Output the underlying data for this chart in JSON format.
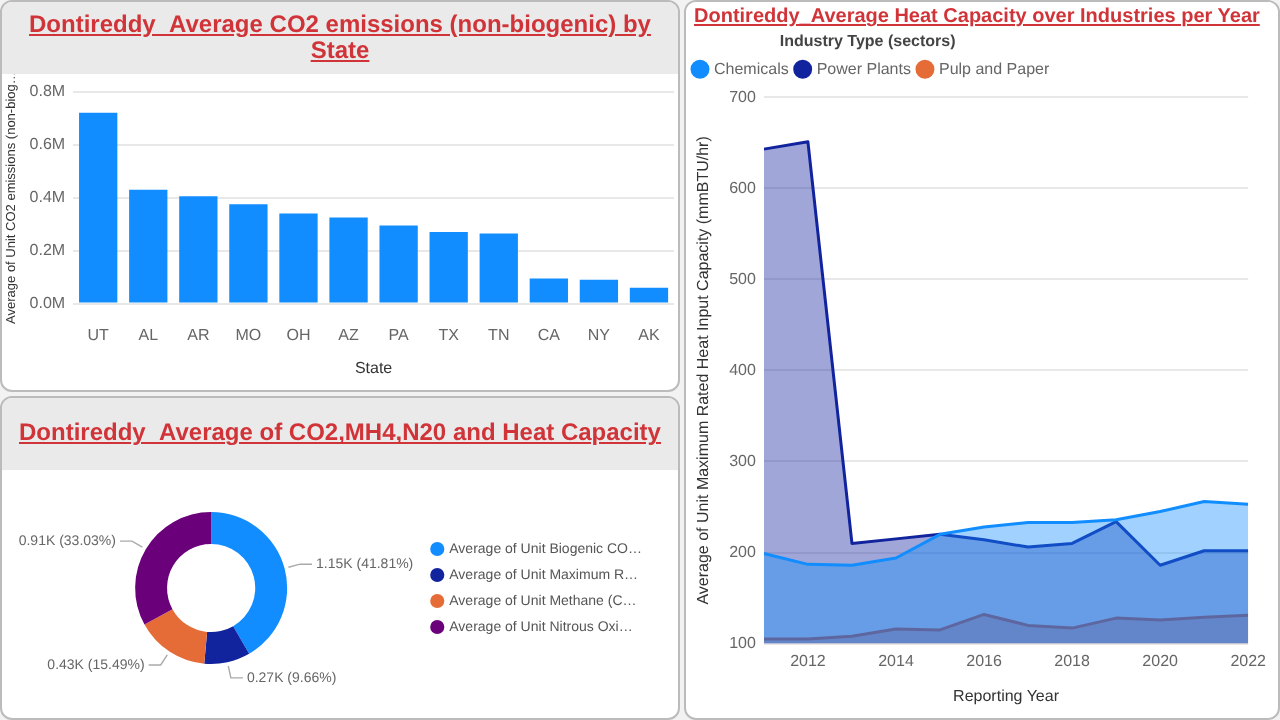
{
  "chart_data": [
    {
      "type": "bar",
      "title": "Dontireddy_Average CO2 emissions (non-biogenic) by State",
      "xlabel": "State",
      "ylabel": "Average of Unit CO2 emissions (non-biog…",
      "categories": [
        "UT",
        "AL",
        "AR",
        "MO",
        "OH",
        "AZ",
        "PA",
        "TX",
        "TN",
        "CA",
        "NY",
        "AK"
      ],
      "values": [
        720000,
        430000,
        405000,
        375000,
        340000,
        325000,
        295000,
        270000,
        265000,
        95000,
        90000,
        60000
      ],
      "color": "#118dff",
      "ylim": [
        0,
        800000
      ],
      "yticks": [
        {
          "value": 0,
          "label": "0.0M"
        },
        {
          "value": 200000,
          "label": "0.2M"
        },
        {
          "value": 400000,
          "label": "0.4M"
        },
        {
          "value": 600000,
          "label": "0.6M"
        },
        {
          "value": 800000,
          "label": "0.8M"
        }
      ],
      "grid": "y",
      "legend": false
    },
    {
      "type": "donut",
      "title": "Dontireddy_Average of CO2,MH4,N20 and Heat Capacity",
      "categories": [
        "Average of Unit Biogenic CO…",
        "Average of Unit Maximum R…",
        "Average of Unit Methane (C…",
        "Average of Unit Nitrous Oxi…"
      ],
      "values": [
        1150,
        270,
        430,
        910
      ],
      "colors": [
        "#118dff",
        "#12239e",
        "#e66c37",
        "#6b007b"
      ],
      "value_labels": [
        "1.15K (41.81%)",
        "0.27K (9.66%)",
        "0.43K (15.49%)",
        "0.91K (33.03%)"
      ],
      "legend": "right"
    },
    {
      "type": "area",
      "title": "Dontireddy_Average Heat Capacity over Industries per Year",
      "xlabel": "Reporting Year",
      "ylabel": "Average of Unit Maximum Rated Heat Input Capacity (mmBTU/hr)",
      "legend_title": "Industry Type (sectors)",
      "legend": "top left",
      "grid": "y",
      "x": [
        2011,
        2012,
        2013,
        2014,
        2015,
        2016,
        2017,
        2018,
        2019,
        2020,
        2021,
        2022
      ],
      "xlim": [
        2011,
        2022
      ],
      "xticks": [
        2012,
        2014,
        2016,
        2018,
        2020,
        2022
      ],
      "ylim": [
        100,
        700
      ],
      "yticks": [
        100,
        200,
        300,
        400,
        500,
        600,
        700
      ],
      "series": [
        {
          "name": "Chemicals",
          "color": "#118dff",
          "values": [
            199,
            187,
            186,
            194,
            220,
            228,
            233,
            233,
            236,
            245,
            256,
            253
          ]
        },
        {
          "name": "Power Plants",
          "color": "#12239e",
          "values": [
            643,
            651,
            210,
            215,
            220,
            214,
            206,
            210,
            234,
            186,
            202,
            202
          ]
        },
        {
          "name": "Pulp and Paper",
          "color": "#e66c37",
          "values": [
            105,
            105,
            108,
            116,
            115,
            132,
            120,
            117,
            128,
            126,
            129,
            131
          ]
        }
      ]
    }
  ]
}
